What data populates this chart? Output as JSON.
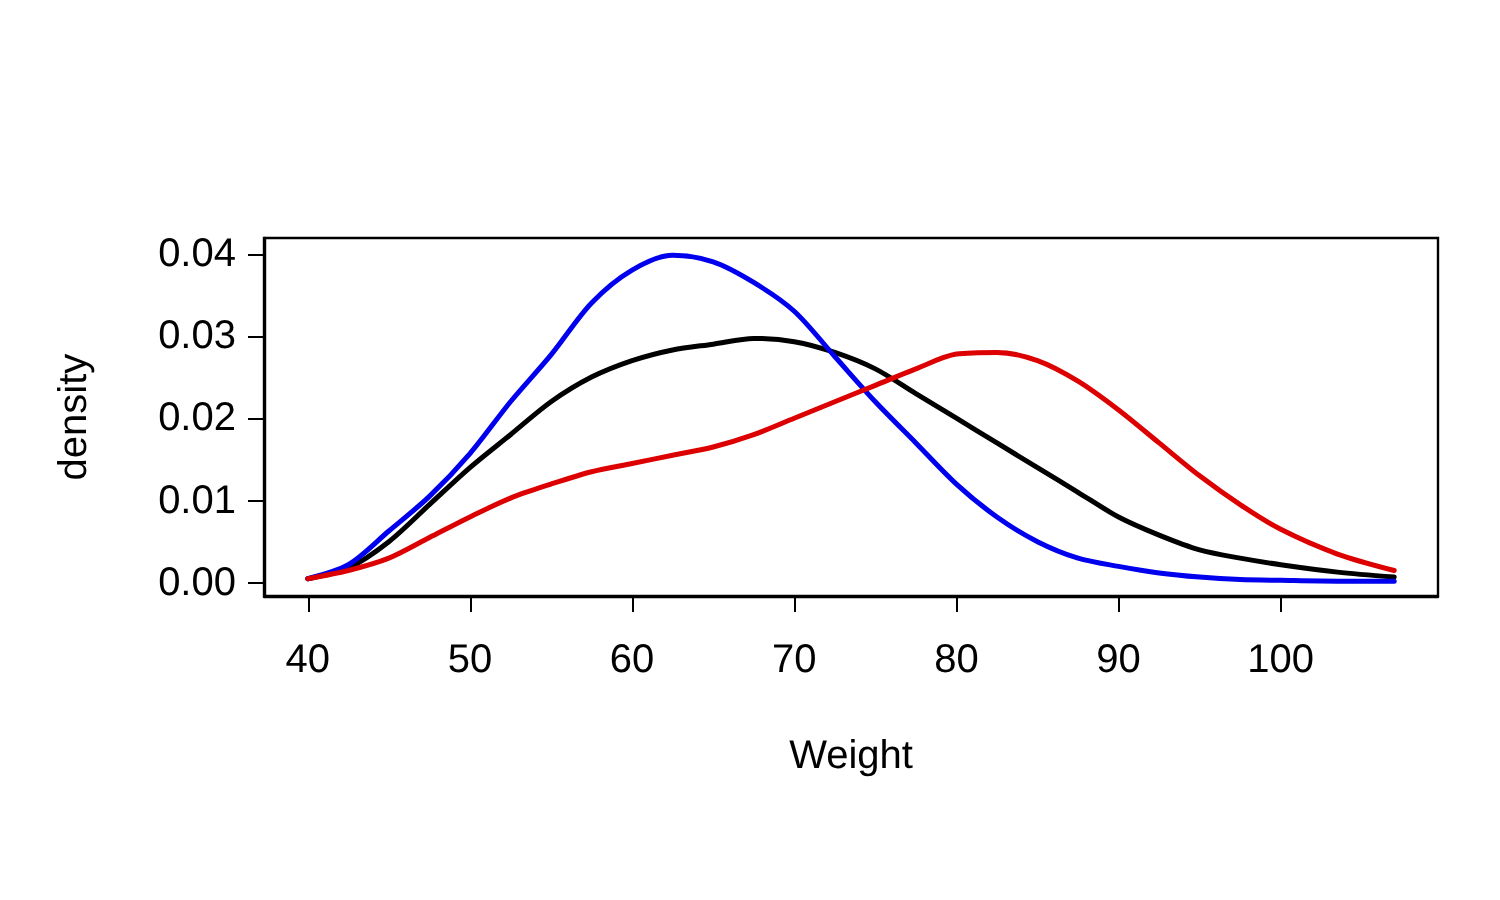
{
  "chart_data": {
    "type": "line",
    "xlabel": "Weight",
    "ylabel": "density",
    "xlim": [
      37.3,
      109.7
    ],
    "ylim": [
      -0.0016,
      0.0419
    ],
    "xticks": [
      40,
      50,
      60,
      70,
      80,
      90,
      100
    ],
    "yticks": [
      {
        "value": 0,
        "label": "0.00"
      },
      {
        "value": 0.01,
        "label": "0.01"
      },
      {
        "value": 0.02,
        "label": "0.02"
      },
      {
        "value": 0.03,
        "label": "0.03"
      },
      {
        "value": 0.04,
        "label": "0.04"
      }
    ],
    "grid": false,
    "line_style": "solid",
    "marker": "none",
    "x": [
      40,
      42.5,
      45,
      47.5,
      50,
      52.5,
      55,
      57.5,
      60,
      62.5,
      65,
      67.5,
      70,
      72.5,
      75,
      77.5,
      80,
      82.5,
      85,
      87.5,
      90,
      92.5,
      95,
      97.5,
      100,
      103.5,
      107
    ],
    "series": [
      {
        "color": "#000000",
        "values": [
          0.0005,
          0.0018,
          0.005,
          0.0095,
          0.014,
          0.018,
          0.022,
          0.025,
          0.027,
          0.0283,
          0.029,
          0.0297,
          0.0293,
          0.028,
          0.026,
          0.023,
          0.02,
          0.017,
          0.014,
          0.011,
          0.008,
          0.0058,
          0.004,
          0.003,
          0.0022,
          0.0013,
          0.0007
        ]
      },
      {
        "color": "#0000ee",
        "values": [
          0.0005,
          0.0022,
          0.0063,
          0.0105,
          0.0157,
          0.022,
          0.0277,
          0.034,
          0.038,
          0.0398,
          0.039,
          0.0365,
          0.033,
          0.0275,
          0.022,
          0.017,
          0.012,
          0.008,
          0.005,
          0.003,
          0.002,
          0.0012,
          0.0007,
          0.0004,
          0.0003,
          0.0002,
          0.0002
        ]
      },
      {
        "color": "#dd0000",
        "values": [
          0.0005,
          0.0015,
          0.003,
          0.0055,
          0.008,
          0.0103,
          0.012,
          0.0135,
          0.0145,
          0.0155,
          0.0165,
          0.018,
          0.02,
          0.022,
          0.024,
          0.026,
          0.0278,
          0.028,
          0.027,
          0.0245,
          0.021,
          0.017,
          0.013,
          0.0095,
          0.0065,
          0.0035,
          0.0015
        ]
      }
    ]
  }
}
